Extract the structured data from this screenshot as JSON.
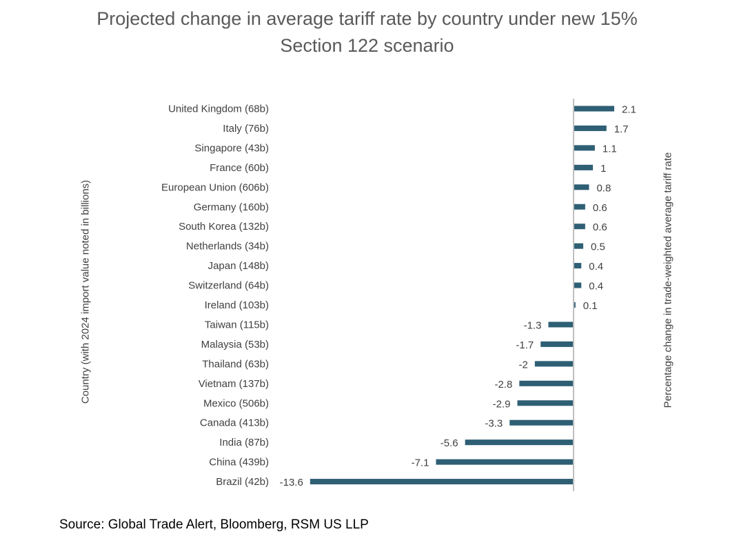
{
  "chart_data": {
    "type": "bar",
    "orientation": "horizontal",
    "title_lines": [
      "Projected change in average tariff rate by country under new 15%",
      "Section 122 scenario"
    ],
    "ylabel": "Country (with 2024 import value noted in billions)",
    "y2label": "Percentage change in trade-weighted average tariff rate",
    "categories": [
      "United Kingdom (68b)",
      "Italy (76b)",
      "Singapore (43b)",
      "France (60b)",
      "European Union (606b)",
      "Germany (160b)",
      "South Korea (132b)",
      "Netherlands (34b)",
      "Japan (148b)",
      "Switzerland (64b)",
      "Ireland (103b)",
      "Taiwan (115b)",
      "Malaysia (53b)",
      "Thailand (63b)",
      "Vietnam (137b)",
      "Mexico (506b)",
      "Canada (413b)",
      "India (87b)",
      "China (439b)",
      "Brazil (42b)"
    ],
    "values": [
      2.1,
      1.7,
      1.1,
      1,
      0.8,
      0.6,
      0.6,
      0.5,
      0.4,
      0.4,
      0.1,
      -1.3,
      -1.7,
      -2,
      -2.8,
      -2.9,
      -3.3,
      -5.6,
      -7.1,
      -13.6
    ],
    "xlim": [
      -14,
      3.5
    ],
    "bar_color": "#2E5F74",
    "axis_color": "#BFBFBF",
    "grid": false,
    "legend": "none"
  },
  "source": "Source: Global Trade Alert, Bloomberg, RSM US LLP"
}
